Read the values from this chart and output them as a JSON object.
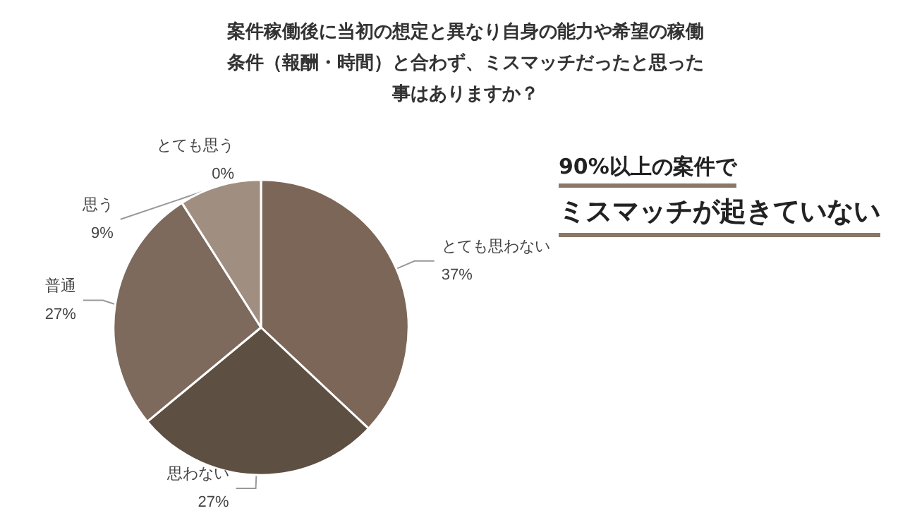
{
  "chart_data": {
    "type": "pie",
    "title": "案件稼働後に当初の想定と異なり自身の能力や希望の稼働条件（報酬・時間）と合わず、ミスマッチだったと思った事はありますか？",
    "value_labels": [
      "0%",
      "37%",
      "27%",
      "27%",
      "9%"
    ],
    "categories": [
      "とても思う",
      "とても思わない",
      "思わない",
      "普通",
      "思う"
    ],
    "values": [
      0,
      37,
      27,
      27,
      9
    ],
    "colors": [
      "#6e5d50",
      "#7b6658",
      "#5e4f43",
      "#7d6a5d",
      "#a08e81"
    ],
    "annotations": [
      "90%以上の案件で",
      "ミスマッチが起きていない"
    ]
  }
}
